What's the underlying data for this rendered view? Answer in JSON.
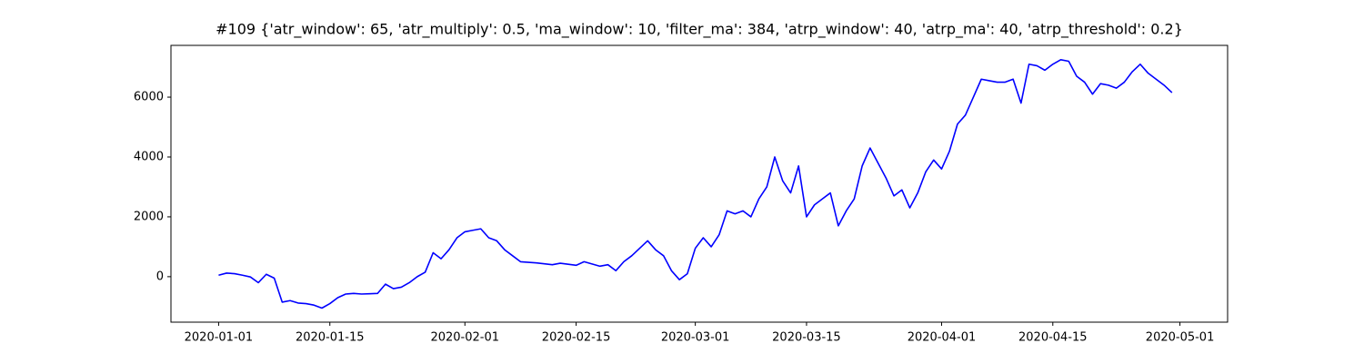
{
  "chart_data": {
    "type": "line",
    "title": "#109 {'atr_window': 65, 'atr_multiply': 0.5, 'ma_window': 10, 'filter_ma': 384, 'atrp_window': 40, 'atrp_ma': 40, 'atrp_threshold': 0.2}",
    "x": [
      "2020-01-01",
      "2020-01-02",
      "2020-01-03",
      "2020-01-04",
      "2020-01-05",
      "2020-01-06",
      "2020-01-07",
      "2020-01-08",
      "2020-01-09",
      "2020-01-10",
      "2020-01-11",
      "2020-01-12",
      "2020-01-13",
      "2020-01-14",
      "2020-01-15",
      "2020-01-16",
      "2020-01-17",
      "2020-01-18",
      "2020-01-19",
      "2020-01-20",
      "2020-01-21",
      "2020-01-22",
      "2020-01-23",
      "2020-01-24",
      "2020-01-25",
      "2020-01-26",
      "2020-01-27",
      "2020-01-28",
      "2020-01-29",
      "2020-01-30",
      "2020-01-31",
      "2020-02-01",
      "2020-02-02",
      "2020-02-03",
      "2020-02-04",
      "2020-02-05",
      "2020-02-06",
      "2020-02-07",
      "2020-02-08",
      "2020-02-10",
      "2020-02-12",
      "2020-02-13",
      "2020-02-15",
      "2020-02-16",
      "2020-02-18",
      "2020-02-19",
      "2020-02-20",
      "2020-02-21",
      "2020-02-22",
      "2020-02-24",
      "2020-02-25",
      "2020-02-26",
      "2020-02-27",
      "2020-02-28",
      "2020-02-29",
      "2020-03-01",
      "2020-03-02",
      "2020-03-03",
      "2020-03-04",
      "2020-03-05",
      "2020-03-06",
      "2020-03-07",
      "2020-03-08",
      "2020-03-09",
      "2020-03-10",
      "2020-03-11",
      "2020-03-12",
      "2020-03-13",
      "2020-03-14",
      "2020-03-15",
      "2020-03-16",
      "2020-03-17",
      "2020-03-18",
      "2020-03-19",
      "2020-03-20",
      "2020-03-21",
      "2020-03-22",
      "2020-03-23",
      "2020-03-24",
      "2020-03-25",
      "2020-03-26",
      "2020-03-27",
      "2020-03-28",
      "2020-03-29",
      "2020-03-30",
      "2020-03-31",
      "2020-04-01",
      "2020-04-02",
      "2020-04-03",
      "2020-04-04",
      "2020-04-05",
      "2020-04-06",
      "2020-04-07",
      "2020-04-08",
      "2020-04-09",
      "2020-04-10",
      "2020-04-11",
      "2020-04-12",
      "2020-04-13",
      "2020-04-14",
      "2020-04-15",
      "2020-04-16",
      "2020-04-17",
      "2020-04-18",
      "2020-04-19",
      "2020-04-20",
      "2020-04-21",
      "2020-04-22",
      "2020-04-23",
      "2020-04-24",
      "2020-04-25",
      "2020-04-26",
      "2020-04-27",
      "2020-04-28",
      "2020-04-29",
      "2020-04-30"
    ],
    "series": [
      {
        "color": "#0000ff",
        "values": [
          50,
          120,
          100,
          50,
          -10,
          -200,
          80,
          -50,
          -850,
          -800,
          -880,
          -900,
          -950,
          -1050,
          -900,
          -700,
          -580,
          -560,
          -580,
          -570,
          -560,
          -250,
          -400,
          -350,
          -200,
          0,
          150,
          800,
          600,
          900,
          1300,
          1500,
          1550,
          1600,
          1300,
          1200,
          900,
          700,
          500,
          460,
          400,
          450,
          380,
          500,
          350,
          400,
          200,
          500,
          700,
          1200,
          900,
          700,
          200,
          -100,
          100,
          950,
          1300,
          1000,
          1400,
          2200,
          2100,
          2200,
          2000,
          2600,
          3000,
          4000,
          3200,
          2800,
          3700,
          2000,
          2400,
          2600,
          2800,
          1700,
          2200,
          2600,
          3700,
          4300,
          3800,
          3300,
          2700,
          2900,
          2300,
          2800,
          3500,
          3900,
          3600,
          4200,
          5100,
          5400,
          6000,
          6600,
          6550,
          6500,
          6500,
          6600,
          5800,
          7100,
          7050,
          6900,
          7100,
          7250,
          7200,
          6700,
          6500,
          6100,
          6450,
          6400,
          6300,
          6500,
          6850,
          7100,
          6800,
          6600,
          6400,
          6150
        ]
      }
    ],
    "xlim": [
      "2019-12-26",
      "2020-05-07"
    ],
    "xticks": [
      "2020-01-01",
      "2020-01-15",
      "2020-02-01",
      "2020-02-15",
      "2020-03-01",
      "2020-03-15",
      "2020-04-01",
      "2020-04-15",
      "2020-05-01"
    ],
    "ylim": [
      -1520,
      7730
    ],
    "yticks": [
      0,
      2000,
      4000,
      6000
    ]
  }
}
